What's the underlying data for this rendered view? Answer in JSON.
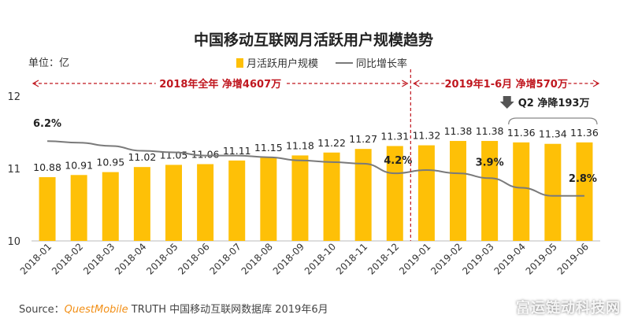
{
  "chart_data": {
    "type": "bar",
    "title": "中国移动互联网月活跃用户规模趋势",
    "unit_label": "单位：亿",
    "categories": [
      "2018-01",
      "2018-02",
      "2018-03",
      "2018-04",
      "2018-05",
      "2018-06",
      "2018-07",
      "2018-08",
      "2018-09",
      "2018-10",
      "2018-11",
      "2018-12",
      "2019-01",
      "2019-02",
      "2019-03",
      "2019-04",
      "2019-05",
      "2019-06"
    ],
    "series": [
      {
        "name": "月活跃用户规模",
        "type": "bar",
        "values": [
          10.88,
          10.91,
          10.95,
          11.02,
          11.05,
          11.06,
          11.11,
          11.15,
          11.18,
          11.22,
          11.27,
          11.31,
          11.32,
          11.38,
          11.38,
          11.36,
          11.34,
          11.36
        ],
        "labels": [
          "10.88",
          "10.91",
          "10.95",
          "11.02",
          "11.05",
          "11.06",
          "11.11",
          "11.15",
          "11.18",
          "11.22",
          "11.27",
          "11.31",
          "11.32",
          "11.38",
          "11.38",
          "11.36",
          "11.34",
          "11.36"
        ]
      },
      {
        "name": "同比增长率",
        "type": "line",
        "values": [
          6.2,
          6.1,
          5.9,
          5.6,
          5.5,
          5.3,
          5.3,
          5.2,
          5.0,
          4.9,
          4.8,
          4.2,
          4.4,
          4.2,
          3.9,
          3.3,
          2.8,
          2.8
        ]
      }
    ],
    "growth_labels": [
      {
        "index": 0,
        "text": "6.2%"
      },
      {
        "index": 11,
        "text": "4.2%"
      },
      {
        "index": 14,
        "text": "3.9%"
      },
      {
        "index": 17,
        "text": "2.8%"
      }
    ],
    "yaxis": {
      "min": 10,
      "max": 12,
      "ticks": [
        10,
        11,
        12
      ]
    },
    "y2lim": [
      0,
      9
    ],
    "annotations": {
      "period_2018": "2018年全年  净增4607万",
      "period_2019": "2019年1-6月  净增570万",
      "q2": "Q2  净降193万"
    }
  },
  "source": {
    "prefix": "Source：",
    "brand": "QuestMobile",
    "rest": " TRUTH 中国移动互联网数据库 2019年6月"
  },
  "watermark": "富运链动科技网",
  "colors": {
    "bar": "#fec007",
    "line": "#7a7a7a",
    "annotation": "#c0171f",
    "axis": "#bbbbbb"
  }
}
